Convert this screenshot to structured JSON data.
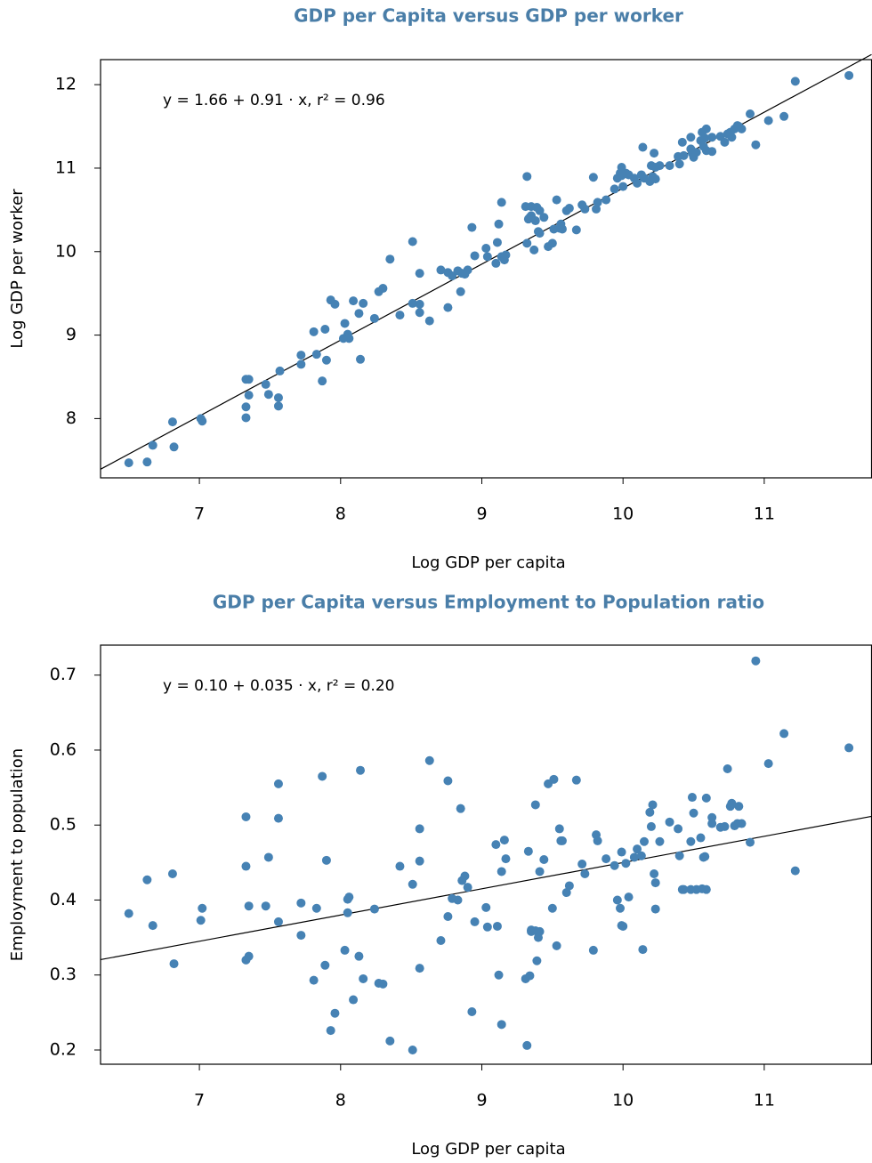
{
  "chart_data": [
    {
      "type": "scatter",
      "title": "GDP per Capita versus GDP per worker",
      "x_label": "Log GDP per capita",
      "y_label": "Log GDP per worker",
      "annotation": "y = 1.66 + 0.91 · x,  r² = 0.96",
      "fit": {
        "intercept": 1.66,
        "slope": 0.91
      },
      "color": "#4682b4",
      "xlim": [
        6.3,
        11.76
      ],
      "ylim": [
        7.29,
        12.3
      ],
      "xticks": [
        7,
        8,
        9,
        10,
        11
      ],
      "yticks": [
        8,
        9,
        10,
        11,
        12
      ],
      "x": [
        6.5,
        6.63,
        6.67,
        6.81,
        6.82,
        7.01,
        7.02,
        7.33,
        7.35,
        7.33,
        7.33,
        7.35,
        7.47,
        7.49,
        7.56,
        7.56,
        7.57,
        7.72,
        7.72,
        7.81,
        7.83,
        7.89,
        7.9,
        7.87,
        7.93,
        7.96,
        8.02,
        8.03,
        8.05,
        8.06,
        8.09,
        8.14,
        8.13,
        8.16,
        8.24,
        8.27,
        8.3,
        8.35,
        8.42,
        8.51,
        8.51,
        8.56,
        8.56,
        8.56,
        8.63,
        8.71,
        8.76,
        8.76,
        8.79,
        8.83,
        8.85,
        8.86,
        8.88,
        8.9,
        8.93,
        8.95,
        9.03,
        9.04,
        9.1,
        9.11,
        9.12,
        9.14,
        9.14,
        9.16,
        9.17,
        9.32,
        9.31,
        9.34,
        9.35,
        9.33,
        9.35,
        9.38,
        9.39,
        9.32,
        9.37,
        9.4,
        9.41,
        9.41,
        9.44,
        9.47,
        9.5,
        9.51,
        9.53,
        9.55,
        9.57,
        9.56,
        9.6,
        9.62,
        9.67,
        9.71,
        9.73,
        9.79,
        9.81,
        9.82,
        9.88,
        9.94,
        9.96,
        9.98,
        9.99,
        9.99,
        10.02,
        10.0,
        10.04,
        10.08,
        10.1,
        10.13,
        10.14,
        10.15,
        10.19,
        10.21,
        10.2,
        10.22,
        10.23,
        10.23,
        10.26,
        10.33,
        10.39,
        10.4,
        10.42,
        10.43,
        10.48,
        10.48,
        10.49,
        10.5,
        10.52,
        10.55,
        10.56,
        10.57,
        10.59,
        10.59,
        10.58,
        10.63,
        10.63,
        10.69,
        10.72,
        10.74,
        10.76,
        10.77,
        10.79,
        10.81,
        10.82,
        10.84,
        10.9,
        10.94,
        11.03,
        11.14,
        11.22,
        11.6
      ],
      "values": [
        7.47,
        7.48,
        7.68,
        7.96,
        7.66,
        8.0,
        7.97,
        8.47,
        8.47,
        8.14,
        8.01,
        8.28,
        8.41,
        8.29,
        8.25,
        8.15,
        8.57,
        8.76,
        8.65,
        9.04,
        8.77,
        9.07,
        8.7,
        8.45,
        9.42,
        9.37,
        8.96,
        9.14,
        9.01,
        8.96,
        9.41,
        8.71,
        9.26,
        9.38,
        9.2,
        9.52,
        9.56,
        9.91,
        9.24,
        10.12,
        9.38,
        9.37,
        9.27,
        9.74,
        9.17,
        9.78,
        9.33,
        9.75,
        9.71,
        9.77,
        9.52,
        9.74,
        9.73,
        9.78,
        10.29,
        9.95,
        10.04,
        9.94,
        9.86,
        10.11,
        10.33,
        10.59,
        9.94,
        9.9,
        9.96,
        10.9,
        10.54,
        10.41,
        10.54,
        10.39,
        10.43,
        10.37,
        10.53,
        10.1,
        10.02,
        10.24,
        10.49,
        10.22,
        10.41,
        10.06,
        10.1,
        10.27,
        10.62,
        10.28,
        10.27,
        10.33,
        10.49,
        10.52,
        10.26,
        10.56,
        10.51,
        10.89,
        10.51,
        10.59,
        10.62,
        10.75,
        10.88,
        10.94,
        11.01,
        10.91,
        10.94,
        10.78,
        10.92,
        10.88,
        10.82,
        10.92,
        11.25,
        10.88,
        10.84,
        10.9,
        11.03,
        11.18,
        11.01,
        10.87,
        11.03,
        11.03,
        11.14,
        11.05,
        11.31,
        11.15,
        11.37,
        11.23,
        11.18,
        11.13,
        11.19,
        11.33,
        11.43,
        11.26,
        11.21,
        11.47,
        11.36,
        11.37,
        11.2,
        11.38,
        11.31,
        11.41,
        11.43,
        11.37,
        11.47,
        11.51,
        11.5,
        11.47,
        11.65,
        11.28,
        11.57,
        11.62,
        12.04,
        12.11
      ]
    },
    {
      "type": "scatter",
      "title": "GDP per Capita versus Employment to Population ratio",
      "x_label": "Log GDP per capita",
      "y_label": "Employment to population",
      "annotation": "y = 0.10 + 0.035 · x,  r² = 0.20",
      "fit": {
        "intercept": 0.1,
        "slope": 0.035
      },
      "color": "#4682b4",
      "xlim": [
        6.3,
        11.76
      ],
      "ylim": [
        0.181,
        0.74
      ],
      "xticks": [
        7,
        8,
        9,
        10,
        11
      ],
      "yticks": [
        0.2,
        0.3,
        0.4,
        0.5,
        0.6,
        0.7
      ],
      "x": [
        6.5,
        6.63,
        6.67,
        6.81,
        6.82,
        7.01,
        7.02,
        7.33,
        7.33,
        7.35,
        7.35,
        7.33,
        7.47,
        7.49,
        7.56,
        7.56,
        7.56,
        7.72,
        7.72,
        7.81,
        7.83,
        7.87,
        7.9,
        7.89,
        7.93,
        7.96,
        8.03,
        8.05,
        8.05,
        8.06,
        8.09,
        8.14,
        8.13,
        8.16,
        8.24,
        8.27,
        8.3,
        8.35,
        8.42,
        8.51,
        8.51,
        8.56,
        8.56,
        8.56,
        8.63,
        8.71,
        8.76,
        8.76,
        8.79,
        8.83,
        8.85,
        8.86,
        8.88,
        8.9,
        8.93,
        8.95,
        9.03,
        9.04,
        9.1,
        9.11,
        9.12,
        9.14,
        9.14,
        9.16,
        9.17,
        9.32,
        9.31,
        9.34,
        9.35,
        9.33,
        9.35,
        9.38,
        9.39,
        9.38,
        9.41,
        9.4,
        9.41,
        9.44,
        9.47,
        9.5,
        9.51,
        9.53,
        9.55,
        9.57,
        9.56,
        9.6,
        9.62,
        9.67,
        9.71,
        9.73,
        9.79,
        9.81,
        9.82,
        9.88,
        9.94,
        9.96,
        9.98,
        9.99,
        9.99,
        10.02,
        10.0,
        10.04,
        10.08,
        10.1,
        10.13,
        10.14,
        10.15,
        10.19,
        10.21,
        10.2,
        10.22,
        10.23,
        10.23,
        10.26,
        10.33,
        10.39,
        10.4,
        10.42,
        10.43,
        10.48,
        10.48,
        10.49,
        10.5,
        10.52,
        10.55,
        10.56,
        10.57,
        10.59,
        10.59,
        10.58,
        10.63,
        10.63,
        10.69,
        10.72,
        10.74,
        10.76,
        10.77,
        10.79,
        10.81,
        10.82,
        10.84,
        10.9,
        10.94,
        11.03,
        11.14,
        11.22,
        11.6
      ],
      "values": [
        0.382,
        0.427,
        0.366,
        0.435,
        0.315,
        0.373,
        0.389,
        0.511,
        0.445,
        0.392,
        0.325,
        0.32,
        0.392,
        0.457,
        0.555,
        0.509,
        0.371,
        0.396,
        0.353,
        0.293,
        0.389,
        0.565,
        0.453,
        0.313,
        0.226,
        0.249,
        0.333,
        0.401,
        0.383,
        0.404,
        0.267,
        0.573,
        0.325,
        0.295,
        0.388,
        0.289,
        0.288,
        0.212,
        0.445,
        0.421,
        0.2,
        0.452,
        0.495,
        0.309,
        0.586,
        0.346,
        0.559,
        0.378,
        0.402,
        0.4,
        0.522,
        0.426,
        0.432,
        0.417,
        0.251,
        0.371,
        0.39,
        0.364,
        0.474,
        0.365,
        0.3,
        0.234,
        0.438,
        0.48,
        0.455,
        0.206,
        0.295,
        0.299,
        0.358,
        0.465,
        0.36,
        0.359,
        0.319,
        0.527,
        0.358,
        0.35,
        0.438,
        0.454,
        0.555,
        0.389,
        0.561,
        0.339,
        0.495,
        0.479,
        0.479,
        0.41,
        0.419,
        0.56,
        0.448,
        0.435,
        0.333,
        0.487,
        0.479,
        0.455,
        0.446,
        0.4,
        0.389,
        0.366,
        0.464,
        0.449,
        0.365,
        0.404,
        0.457,
        0.468,
        0.459,
        0.334,
        0.478,
        0.517,
        0.527,
        0.498,
        0.435,
        0.423,
        0.388,
        0.478,
        0.504,
        0.495,
        0.459,
        0.414,
        0.414,
        0.478,
        0.414,
        0.537,
        0.516,
        0.414,
        0.483,
        0.415,
        0.457,
        0.536,
        0.414,
        0.458,
        0.502,
        0.51,
        0.497,
        0.498,
        0.575,
        0.525,
        0.529,
        0.499,
        0.502,
        0.525,
        0.502,
        0.477,
        0.719,
        0.582,
        0.622,
        0.439,
        0.603
      ]
    }
  ]
}
